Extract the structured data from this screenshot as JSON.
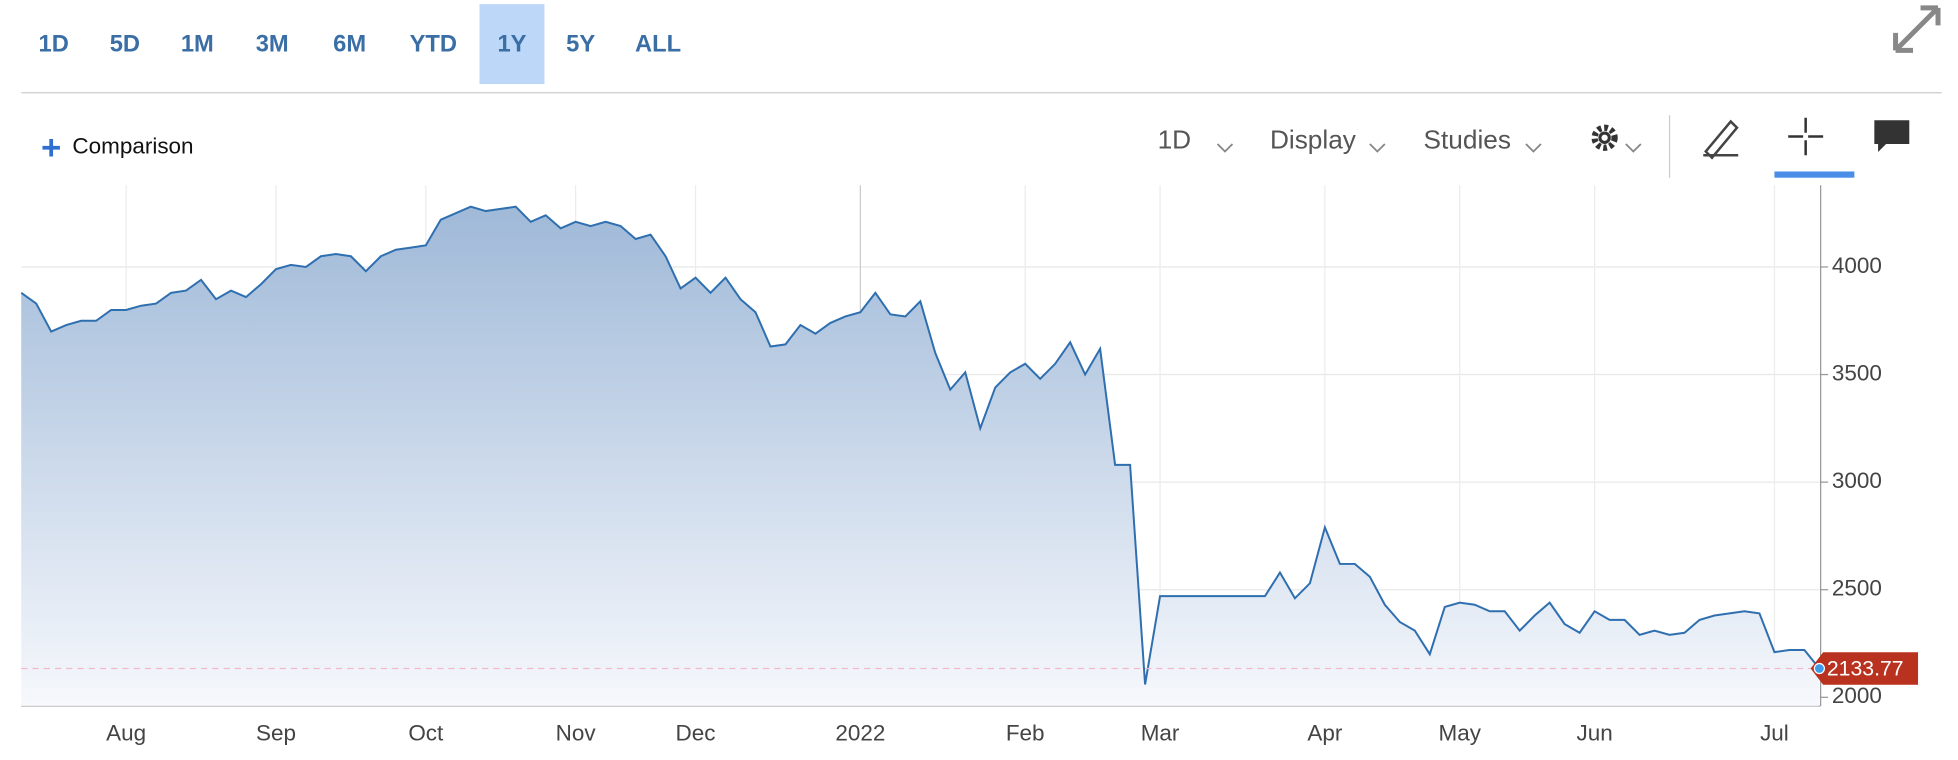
{
  "toolbar": {
    "ranges": [
      "1D",
      "5D",
      "1M",
      "3M",
      "6M",
      "YTD",
      "1Y",
      "5Y",
      "ALL"
    ],
    "active": 6,
    "comparison": "Comparison",
    "interval": "1D",
    "display": "Display",
    "studies": "Studies"
  },
  "chart_data": {
    "type": "line",
    "color": "#2f6fb0",
    "grid": true,
    "categories": [
      null,
      null,
      null,
      null,
      null,
      null,
      null,
      "Aug",
      null,
      null,
      null,
      null,
      null,
      null,
      null,
      null,
      null,
      "Sep",
      null,
      null,
      null,
      null,
      null,
      null,
      null,
      null,
      null,
      "Oct",
      null,
      null,
      null,
      null,
      null,
      null,
      null,
      null,
      null,
      "Nov",
      null,
      null,
      null,
      null,
      null,
      null,
      null,
      "Dec",
      null,
      null,
      null,
      null,
      null,
      null,
      null,
      null,
      null,
      null,
      "2022",
      null,
      null,
      null,
      null,
      null,
      null,
      null,
      null,
      null,
      null,
      "Feb",
      null,
      null,
      null,
      null,
      null,
      null,
      null,
      null,
      "Mar",
      null,
      null,
      null,
      null,
      null,
      null,
      null,
      null,
      null,
      null,
      "Apr",
      null,
      null,
      null,
      null,
      null,
      null,
      null,
      null,
      "May",
      null,
      null,
      null,
      null,
      null,
      null,
      null,
      null,
      "Jun",
      null,
      null,
      null,
      null,
      null,
      null,
      null,
      null,
      null,
      null,
      null,
      "Jul",
      null,
      null,
      null
    ],
    "values": [
      3880,
      3830,
      3700,
      3730,
      3750,
      3750,
      3800,
      3800,
      3820,
      3830,
      3880,
      3890,
      3940,
      3850,
      3890,
      3860,
      3920,
      3990,
      4010,
      4000,
      4050,
      4060,
      4050,
      3980,
      4050,
      4080,
      4090,
      4100,
      4220,
      4250,
      4280,
      4260,
      4270,
      4280,
      4210,
      4240,
      4180,
      4210,
      4190,
      4210,
      4190,
      4130,
      4150,
      4050,
      3900,
      3950,
      3880,
      3950,
      3850,
      3790,
      3630,
      3640,
      3730,
      3690,
      3740,
      3770,
      3790,
      3880,
      3780,
      3770,
      3840,
      3600,
      3430,
      3510,
      3250,
      3440,
      3510,
      3550,
      3480,
      3550,
      3650,
      3500,
      3620,
      3080,
      3080,
      2060,
      2470,
      2470,
      2470,
      2470,
      2470,
      2470,
      2470,
      2470,
      2580,
      2460,
      2530,
      2790,
      2620,
      2620,
      2560,
      2430,
      2350,
      2310,
      2200,
      2420,
      2440,
      2430,
      2400,
      2400,
      2310,
      2380,
      2440,
      2340,
      2300,
      2400,
      2360,
      2360,
      2290,
      2310,
      2290,
      2300,
      2360,
      2380,
      2390,
      2400,
      2390,
      2210,
      2220,
      2220,
      2133.77
    ],
    "ylim": [
      1960,
      4380
    ],
    "yticks": [
      2000,
      2500,
      3000,
      3500,
      4000
    ]
  }
}
